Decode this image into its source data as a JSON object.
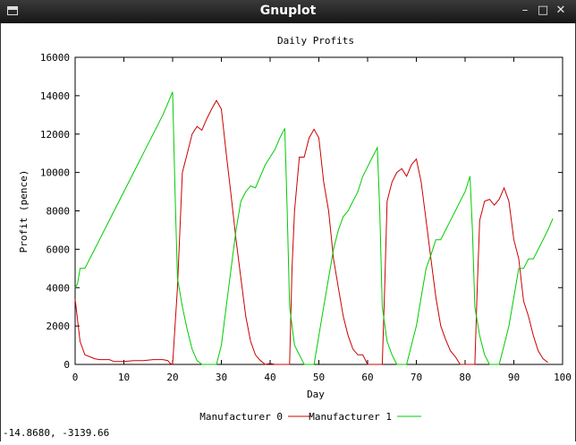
{
  "window": {
    "title": "Gnuplot",
    "minimize_glyph": "–",
    "maximize_glyph": "□",
    "close_glyph": "✕"
  },
  "status_text": "-14.8680, -3139.66",
  "chart_data": {
    "type": "line",
    "title": "Daily Profits",
    "xlabel": "Day",
    "ylabel": "Profit (pence)",
    "xlim": [
      0,
      100
    ],
    "ylim": [
      0,
      16000
    ],
    "x_ticks": [
      0,
      10,
      20,
      30,
      40,
      50,
      60,
      70,
      80,
      90,
      100
    ],
    "y_ticks": [
      0,
      2000,
      4000,
      6000,
      8000,
      10000,
      12000,
      14000,
      16000
    ],
    "grid": false,
    "legend_position": "bottom-center",
    "series": [
      {
        "name": "Manufacturer 0",
        "color": "#cc0000",
        "points": [
          [
            0,
            3400
          ],
          [
            1,
            1200
          ],
          [
            2,
            500
          ],
          [
            3,
            400
          ],
          [
            4,
            300
          ],
          [
            5,
            250
          ],
          [
            6,
            250
          ],
          [
            7,
            250
          ],
          [
            8,
            150
          ],
          [
            9,
            150
          ],
          [
            10,
            150
          ],
          [
            12,
            200
          ],
          [
            14,
            200
          ],
          [
            16,
            250
          ],
          [
            18,
            250
          ],
          [
            19,
            200
          ],
          [
            19.5,
            50
          ],
          [
            20,
            0
          ],
          [
            21,
            4000
          ],
          [
            22,
            10000
          ],
          [
            23,
            11000
          ],
          [
            24,
            12000
          ],
          [
            25,
            12400
          ],
          [
            26,
            12200
          ],
          [
            27,
            12800
          ],
          [
            28,
            13300
          ],
          [
            29,
            13750
          ],
          [
            30,
            13300
          ],
          [
            31,
            11000
          ],
          [
            32,
            8800
          ],
          [
            33,
            6500
          ],
          [
            34,
            4500
          ],
          [
            35,
            2500
          ],
          [
            36,
            1200
          ],
          [
            37,
            500
          ],
          [
            38,
            200
          ],
          [
            39,
            0
          ],
          [
            40,
            50
          ],
          [
            41,
            0
          ],
          [
            42,
            0
          ],
          [
            43,
            0
          ],
          [
            44,
            0
          ],
          [
            44.5,
            5000
          ],
          [
            45,
            8000
          ],
          [
            46,
            10800
          ],
          [
            47,
            10800
          ],
          [
            48,
            11800
          ],
          [
            49,
            12250
          ],
          [
            50,
            11800
          ],
          [
            51,
            9500
          ],
          [
            52,
            8000
          ],
          [
            53,
            5500
          ],
          [
            54,
            4000
          ],
          [
            55,
            2500
          ],
          [
            56,
            1500
          ],
          [
            57,
            800
          ],
          [
            58,
            500
          ],
          [
            59,
            500
          ],
          [
            60,
            0
          ],
          [
            61,
            0
          ],
          [
            62,
            0
          ],
          [
            63,
            0
          ],
          [
            63.5,
            4000
          ],
          [
            64,
            8500
          ],
          [
            65,
            9500
          ],
          [
            66,
            10000
          ],
          [
            67,
            10200
          ],
          [
            68,
            9800
          ],
          [
            69,
            10400
          ],
          [
            70,
            10700
          ],
          [
            71,
            9500
          ],
          [
            72,
            7500
          ],
          [
            73,
            5500
          ],
          [
            74,
            3500
          ],
          [
            75,
            2000
          ],
          [
            76,
            1300
          ],
          [
            77,
            700
          ],
          [
            78,
            400
          ],
          [
            79,
            0
          ],
          [
            80,
            0
          ],
          [
            81,
            0
          ],
          [
            82,
            0
          ],
          [
            82.5,
            4000
          ],
          [
            83,
            7500
          ],
          [
            84,
            8500
          ],
          [
            85,
            8600
          ],
          [
            86,
            8300
          ],
          [
            87,
            8600
          ],
          [
            88,
            9200
          ],
          [
            89,
            8500
          ],
          [
            90,
            6500
          ],
          [
            91,
            5500
          ],
          [
            92,
            3300
          ],
          [
            93,
            2500
          ],
          [
            94,
            1500
          ],
          [
            95,
            700
          ],
          [
            96,
            300
          ],
          [
            97,
            100
          ]
        ]
      },
      {
        "name": "Manufacturer 1",
        "color": "#00cc00",
        "points": [
          [
            0,
            4000
          ],
          [
            0.5,
            4200
          ],
          [
            1,
            5000
          ],
          [
            2,
            5000
          ],
          [
            3,
            5500
          ],
          [
            4,
            6000
          ],
          [
            5,
            6500
          ],
          [
            6,
            7000
          ],
          [
            8,
            8000
          ],
          [
            10,
            9000
          ],
          [
            12,
            10000
          ],
          [
            14,
            11000
          ],
          [
            16,
            12000
          ],
          [
            18,
            13000
          ],
          [
            19,
            13600
          ],
          [
            20,
            14200
          ],
          [
            20.5,
            9000
          ],
          [
            21,
            4500
          ],
          [
            22,
            3000
          ],
          [
            23,
            1800
          ],
          [
            24,
            800
          ],
          [
            25,
            200
          ],
          [
            26,
            0
          ],
          [
            27,
            0
          ],
          [
            28,
            0
          ],
          [
            29,
            0
          ],
          [
            30,
            1000
          ],
          [
            31,
            3000
          ],
          [
            32,
            5000
          ],
          [
            33,
            7000
          ],
          [
            34,
            8500
          ],
          [
            35,
            9000
          ],
          [
            36,
            9300
          ],
          [
            37,
            9200
          ],
          [
            38,
            9800
          ],
          [
            39,
            10400
          ],
          [
            40,
            10800
          ],
          [
            41,
            11200
          ],
          [
            42,
            11800
          ],
          [
            43,
            12300
          ],
          [
            43.5,
            8000
          ],
          [
            44,
            3000
          ],
          [
            45,
            1000
          ],
          [
            46,
            500
          ],
          [
            47,
            0
          ],
          [
            48,
            0
          ],
          [
            49,
            0
          ],
          [
            50,
            1500
          ],
          [
            51,
            3000
          ],
          [
            52,
            4500
          ],
          [
            53,
            6000
          ],
          [
            54,
            7000
          ],
          [
            55,
            7700
          ],
          [
            56,
            8000
          ],
          [
            57,
            8500
          ],
          [
            58,
            9000
          ],
          [
            59,
            9800
          ],
          [
            60,
            10300
          ],
          [
            61,
            10800
          ],
          [
            62,
            11300
          ],
          [
            62.5,
            8000
          ],
          [
            63,
            3000
          ],
          [
            64,
            1200
          ],
          [
            65,
            500
          ],
          [
            66,
            0
          ],
          [
            67,
            0
          ],
          [
            68,
            0
          ],
          [
            69,
            1000
          ],
          [
            70,
            2000
          ],
          [
            71,
            3500
          ],
          [
            72,
            5000
          ],
          [
            73,
            5700
          ],
          [
            74,
            6500
          ],
          [
            75,
            6500
          ],
          [
            76,
            7000
          ],
          [
            77,
            7500
          ],
          [
            78,
            8000
          ],
          [
            79,
            8500
          ],
          [
            80,
            9000
          ],
          [
            81,
            9800
          ],
          [
            81.5,
            7000
          ],
          [
            82,
            3000
          ],
          [
            83,
            1500
          ],
          [
            84,
            500
          ],
          [
            85,
            0
          ],
          [
            86,
            0
          ],
          [
            87,
            0
          ],
          [
            88,
            1000
          ],
          [
            89,
            2000
          ],
          [
            90,
            3500
          ],
          [
            91,
            5000
          ],
          [
            92,
            5000
          ],
          [
            93,
            5500
          ],
          [
            94,
            5500
          ],
          [
            95,
            6000
          ],
          [
            96,
            6500
          ],
          [
            97,
            7000
          ],
          [
            98,
            7600
          ]
        ]
      }
    ]
  }
}
